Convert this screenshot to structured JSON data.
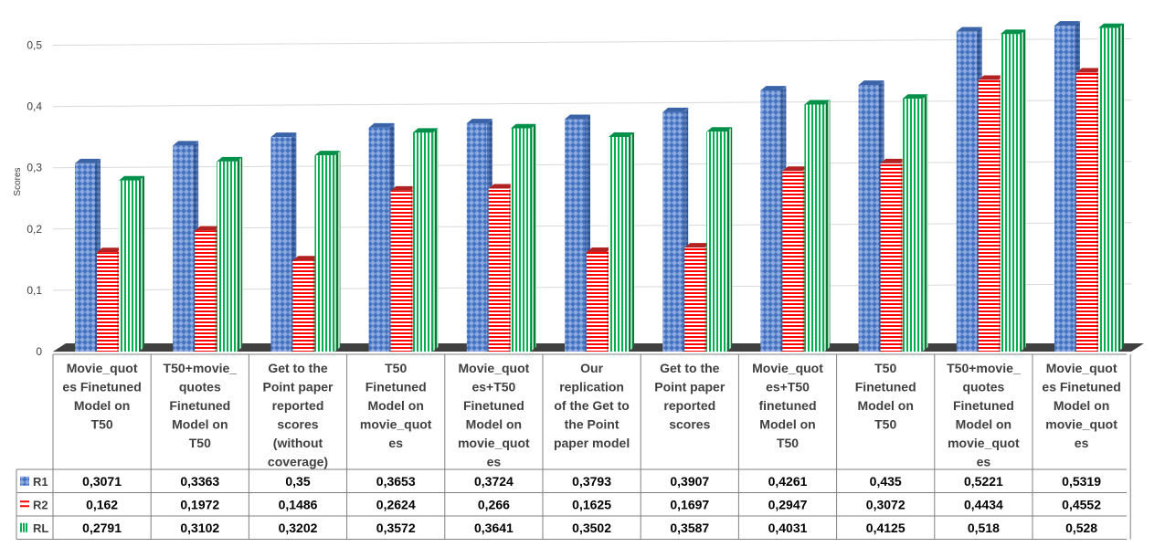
{
  "chart_data": {
    "type": "bar",
    "ylabel": "Scores",
    "ylim": [
      0,
      0.5
    ],
    "yticks": [
      "0",
      "0,1",
      "0,2",
      "0,3",
      "0,4",
      "0,5"
    ],
    "grid": true,
    "legend": "table-left",
    "categories": [
      "Movie_quotes Finetuned Model on T50",
      "T50+movie_quotes Finetuned Model on T50",
      "Get to the Point paper reported scores (without coverage)",
      "T50 Finetuned Model on movie_quotes",
      "Movie_quotes+T50 Finetuned Model on movie_quotes",
      "Our replication of the Get to the Point paper model",
      "Get to the Point paper reported scores",
      "Movie_quotes+T50 finetuned Model on T50",
      "T50 Finetuned Model on T50",
      "T50+movie_quotes Finetuned Model on movie_quotes",
      "Movie_quotes Finetuned Model on movie_quotes"
    ],
    "category_lines": [
      [
        "Movie_quot",
        "es Finetuned",
        "Model on",
        "T50"
      ],
      [
        "T50+movie_",
        "quotes",
        "Finetuned",
        "Model on",
        "T50"
      ],
      [
        "Get to the",
        "Point paper",
        "reported",
        "scores",
        "(without",
        "coverage)"
      ],
      [
        "T50",
        "Finetuned",
        "Model on",
        "movie_quot",
        "es"
      ],
      [
        "Movie_quot",
        "es+T50",
        "Finetuned",
        "Model on",
        "movie_quot",
        "es"
      ],
      [
        "Our",
        "replication",
        "of the Get to",
        "the Point",
        "paper model"
      ],
      [
        "Get to the",
        "Point paper",
        "reported",
        "scores"
      ],
      [
        "Movie_quot",
        "es+T50",
        "finetuned",
        "Model on",
        "T50"
      ],
      [
        "T50",
        "Finetuned",
        "Model on",
        "T50"
      ],
      [
        "T50+movie_",
        "quotes",
        "Finetuned",
        "Model on",
        "movie_quot",
        "es"
      ],
      [
        "Movie_quot",
        "es Finetuned",
        "Model on",
        "movie_quot",
        "es"
      ]
    ],
    "series": [
      {
        "name": "R1",
        "color": "#4472C4",
        "pattern": "diamond",
        "values": [
          0.3071,
          0.3363,
          0.35,
          0.3653,
          0.3724,
          0.3793,
          0.3907,
          0.4261,
          0.435,
          0.5221,
          0.5319
        ],
        "labels": [
          "0,3071",
          "0,3363",
          "0,35",
          "0,3653",
          "0,3724",
          "0,3793",
          "0,3907",
          "0,4261",
          "0,435",
          "0,5221",
          "0,5319"
        ]
      },
      {
        "name": "R2",
        "color": "#FF0000",
        "pattern": "horizontal",
        "values": [
          0.162,
          0.1972,
          0.1486,
          0.2624,
          0.266,
          0.1625,
          0.1697,
          0.2947,
          0.3072,
          0.4434,
          0.4552
        ],
        "labels": [
          "0,162",
          "0,1972",
          "0,1486",
          "0,2624",
          "0,266",
          "0,1625",
          "0,1697",
          "0,2947",
          "0,3072",
          "0,4434",
          "0,4552"
        ]
      },
      {
        "name": "RL",
        "color": "#00B050",
        "pattern": "vertical",
        "values": [
          0.2791,
          0.3102,
          0.3202,
          0.3572,
          0.3641,
          0.3502,
          0.3587,
          0.4031,
          0.4125,
          0.518,
          0.528
        ],
        "labels": [
          "0,2791",
          "0,3102",
          "0,3202",
          "0,3572",
          "0,3641",
          "0,3502",
          "0,3587",
          "0,4031",
          "0,4125",
          "0,518",
          "0,528"
        ]
      }
    ]
  }
}
